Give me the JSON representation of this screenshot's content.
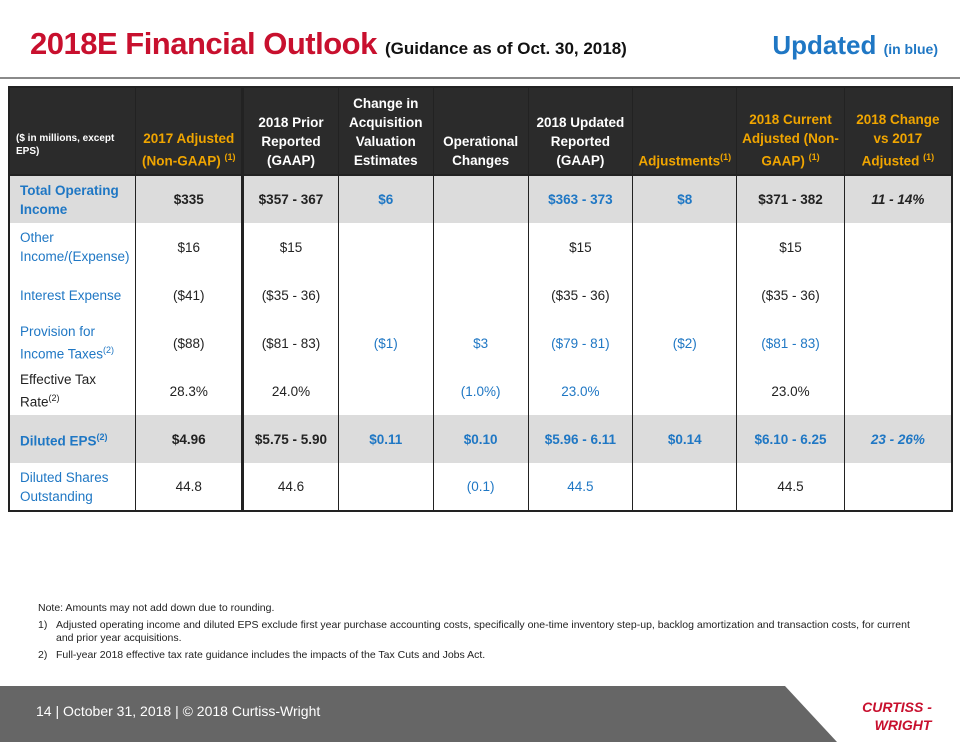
{
  "header": {
    "title": "2018E Financial Outlook",
    "subtitle": "(Guidance as of Oct. 30, 2018)",
    "updated_label": "Updated",
    "updated_note": "(in blue)"
  },
  "table": {
    "corner_label": "($ in millions, except EPS)",
    "columns": [
      {
        "label": "2017 Adjusted (Non-GAAP)",
        "sup": "(1)"
      },
      {
        "label": "2018 Prior Reported (GAAP)",
        "sup": ""
      },
      {
        "label": "Change in Acquisition Valuation Estimates",
        "sup": ""
      },
      {
        "label": "Operational Changes",
        "sup": ""
      },
      {
        "label": "2018 Updated Reported (GAAP)",
        "sup": ""
      },
      {
        "label": "Adjustments",
        "sup": "(1)"
      },
      {
        "label": "2018 Current Adjusted (Non-GAAP)",
        "sup": "(1)"
      },
      {
        "label": "2018 Change vs 2017 Adjusted",
        "sup": "(1)"
      }
    ],
    "rows": [
      {
        "label": "Total Operating Income",
        "label_sup": "",
        "cells": [
          "$335",
          "$357 - 367",
          "$6",
          "",
          "$363 - 373",
          "$8",
          "$371 - 382",
          "11 - 14%"
        ]
      },
      {
        "label": "Other Income/(Expense)",
        "label_sup": "",
        "cells": [
          "$16",
          "$15",
          "",
          "",
          "$15",
          "",
          "$15",
          ""
        ]
      },
      {
        "label": "Interest Expense",
        "label_sup": "",
        "cells": [
          "($41)",
          "($35 - 36)",
          "",
          "",
          "($35 - 36)",
          "",
          "($35 - 36)",
          ""
        ]
      },
      {
        "label": "Provision for Income Taxes",
        "label_sup": "(2)",
        "cells": [
          "($88)",
          "($81 - 83)",
          "($1)",
          "$3",
          "($79 - 81)",
          "($2)",
          "($81 - 83)",
          ""
        ]
      },
      {
        "label": "Effective Tax Rate",
        "label_sup": "(2)",
        "cells": [
          "28.3%",
          "24.0%",
          "",
          "(1.0%)",
          "23.0%",
          "",
          "23.0%",
          ""
        ]
      },
      {
        "label": "Diluted EPS",
        "label_sup": "(2)",
        "cells": [
          "$4.96",
          "$5.75 - 5.90",
          "$0.11",
          "$0.10",
          "$5.96 - 6.11",
          "$0.14",
          "$6.10 - 6.25",
          "23 - 26%"
        ]
      },
      {
        "label": "Diluted Shares Outstanding",
        "label_sup": "",
        "cells": [
          "44.8",
          "44.6",
          "",
          "(0.1)",
          "44.5",
          "",
          "44.5",
          ""
        ]
      }
    ]
  },
  "notes": {
    "intro": "Note: Amounts may not add down due to rounding.",
    "footnotes": [
      {
        "num": "1)",
        "text": "Adjusted operating income and diluted EPS exclude first year purchase accounting costs, specifically one-time inventory step-up, backlog amortization and transaction costs, for current and prior year acquisitions."
      },
      {
        "num": "2)",
        "text": "Full-year 2018 effective tax rate guidance includes the impacts of the Tax Cuts and Jobs Act."
      }
    ]
  },
  "footer": {
    "text": "14  | October 31, 2018  |  © 2018 Curtiss-Wright",
    "logo_line1": "CURTISS -",
    "logo_line2": "WRIGHT"
  },
  "colors": {
    "title_red": "#c8102e",
    "updated_blue": "#1f77c4",
    "header_gold": "#f0a500",
    "header_bg": "#2b2b2b",
    "shade_row": "#dcdcdc",
    "footer_bg": "#666666"
  }
}
